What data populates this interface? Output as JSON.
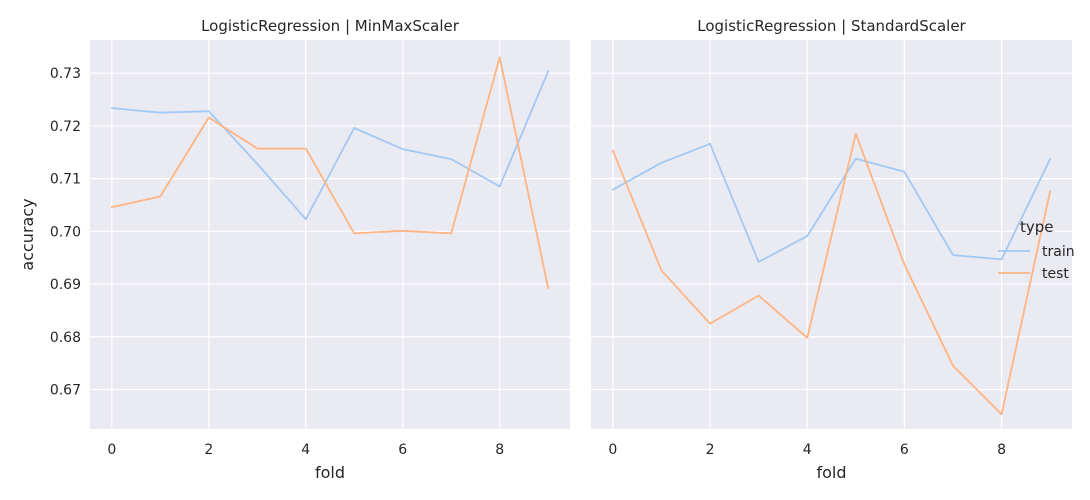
{
  "chart_data": [
    {
      "type": "line",
      "title": "LogisticRegression | MinMaxScaler",
      "xlabel": "fold",
      "ylabel": "accuracy",
      "x": [
        0,
        1,
        2,
        3,
        4,
        5,
        6,
        7,
        8,
        9
      ],
      "xticks": [
        0,
        2,
        4,
        6,
        8
      ],
      "yticks": [
        0.67,
        0.68,
        0.69,
        0.7,
        0.71,
        0.72,
        0.73
      ],
      "xlim": [
        -0.45,
        9.45
      ],
      "ylim": [
        0.6625,
        0.7363
      ],
      "grid": true,
      "series": [
        {
          "name": "train",
          "color": "#a1c9f4",
          "values": [
            0.7234,
            0.7225,
            0.7228,
            0.7128,
            0.7023,
            0.7196,
            0.7156,
            0.7137,
            0.7085,
            0.7304
          ]
        },
        {
          "name": "test",
          "color": "#ffb482",
          "values": [
            0.7046,
            0.7066,
            0.7216,
            0.7157,
            0.7157,
            0.6996,
            0.7001,
            0.6996,
            0.733,
            0.6892
          ]
        }
      ]
    },
    {
      "type": "line",
      "title": "LogisticRegression | StandardScaler",
      "xlabel": "fold",
      "ylabel": "",
      "x": [
        0,
        1,
        2,
        3,
        4,
        5,
        6,
        7,
        8,
        9
      ],
      "xticks": [
        0,
        2,
        4,
        6,
        8
      ],
      "yticks": [
        0.67,
        0.68,
        0.69,
        0.7,
        0.71,
        0.72,
        0.73
      ],
      "xlim": [
        -0.45,
        9.45
      ],
      "ylim": [
        0.6625,
        0.7363
      ],
      "grid": true,
      "series": [
        {
          "name": "train",
          "color": "#a1c9f4",
          "values": [
            0.7079,
            0.713,
            0.7166,
            0.6942,
            0.6991,
            0.7138,
            0.7113,
            0.6955,
            0.6947,
            0.7137
          ]
        },
        {
          "name": "test",
          "color": "#ffb482",
          "values": [
            0.7153,
            0.6926,
            0.6825,
            0.6878,
            0.6798,
            0.7185,
            0.6937,
            0.6745,
            0.6653,
            0.7076
          ]
        }
      ]
    }
  ],
  "legend": {
    "title": "type",
    "placement": "center-right",
    "entries": [
      {
        "label": "train",
        "color": "#a1c9f4"
      },
      {
        "label": "test",
        "color": "#ffb482"
      }
    ]
  },
  "style": {
    "plot_background": "#eaeaf2",
    "grid_color": "#ffffff"
  }
}
